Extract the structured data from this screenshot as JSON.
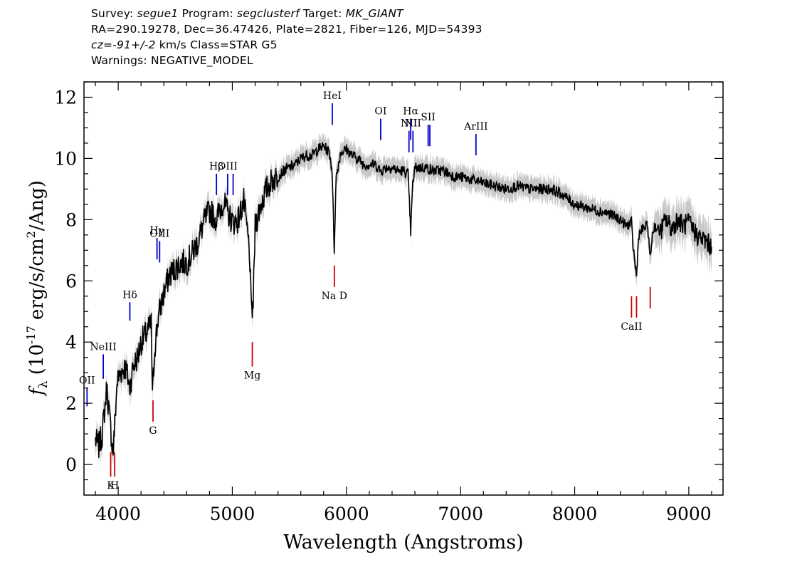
{
  "header": {
    "survey_label": "Survey:",
    "survey": "segue1",
    "program_label": "Program:",
    "program": "segclusterf",
    "target_label": "Target:",
    "target": "MK_GIANT",
    "coords": "RA=290.19278, Dec=36.47426, Plate=2821, Fiber=126, MJD=54393",
    "cz_label": "cz=",
    "cz": "-91+/-2",
    "cz_rest": " km/s Class=STAR G5",
    "warnings": "Warnings: NEGATIVE_MODEL"
  },
  "chart_data": {
    "type": "line",
    "title": "",
    "xlabel": "Wavelength (Angstroms)",
    "ylabel": "f_λ (10^-17 erg/s/cm^2/Ang)",
    "xlim": [
      3700,
      9300
    ],
    "ylim": [
      -1.0,
      12.5
    ],
    "xticks": [
      4000,
      5000,
      6000,
      7000,
      8000,
      9000
    ],
    "yticks": [
      0,
      2,
      4,
      6,
      8,
      10,
      12
    ],
    "series": [
      {
        "color": "#000000",
        "x": [
          3800,
          3830,
          3860,
          3900,
          3930,
          3955,
          3970,
          3990,
          4020,
          4060,
          4080,
          4102,
          4130,
          4170,
          4200,
          4250,
          4290,
          4300,
          4320,
          4350,
          4400,
          4450,
          4500,
          4550,
          4600,
          4650,
          4700,
          4750,
          4800,
          4861,
          4880,
          4920,
          4960,
          5007,
          5050,
          5100,
          5150,
          5167,
          5183,
          5200,
          5250,
          5300,
          5350,
          5400,
          5450,
          5500,
          5550,
          5600,
          5650,
          5700,
          5750,
          5800,
          5850,
          5875,
          5893,
          5910,
          5950,
          6000,
          6050,
          6100,
          6150,
          6200,
          6250,
          6300,
          6350,
          6400,
          6450,
          6500,
          6540,
          6563,
          6580,
          6600,
          6650,
          6700,
          6750,
          6800,
          6850,
          6900,
          6950,
          7000,
          7100,
          7200,
          7300,
          7400,
          7500,
          7600,
          7700,
          7800,
          7900,
          8000,
          8100,
          8200,
          8300,
          8400,
          8450,
          8498,
          8510,
          8542,
          8560,
          8600,
          8640,
          8662,
          8680,
          8700,
          8750,
          8800,
          8850,
          8900,
          8950,
          9000,
          9050,
          9100,
          9150,
          9200
        ],
        "y": [
          0.8,
          0.6,
          1.0,
          2.5,
          1.3,
          0.4,
          1.3,
          2.7,
          3.0,
          3.2,
          2.9,
          2.5,
          3.2,
          3.5,
          4.0,
          4.3,
          4.6,
          2.2,
          3.8,
          4.8,
          5.6,
          6.2,
          6.4,
          6.6,
          6.6,
          6.9,
          7.3,
          7.9,
          8.3,
          8.0,
          8.2,
          8.6,
          8.2,
          7.9,
          8.0,
          8.6,
          7.0,
          4.9,
          5.3,
          7.8,
          8.5,
          9.0,
          9.3,
          9.4,
          9.6,
          9.7,
          9.8,
          10.0,
          10.1,
          10.1,
          10.3,
          10.4,
          10.2,
          9.6,
          7.0,
          9.4,
          10.2,
          10.3,
          10.1,
          10.0,
          9.8,
          9.8,
          9.8,
          9.6,
          9.7,
          9.7,
          9.6,
          9.6,
          9.5,
          7.6,
          9.1,
          9.7,
          9.7,
          9.7,
          9.6,
          9.6,
          9.6,
          9.5,
          9.4,
          9.4,
          9.3,
          9.2,
          9.1,
          9.0,
          9.1,
          9.0,
          9.0,
          9.0,
          8.8,
          8.5,
          8.4,
          8.3,
          8.2,
          8.0,
          7.8,
          7.9,
          7.2,
          6.1,
          7.5,
          7.7,
          7.8,
          6.7,
          7.5,
          7.8,
          7.6,
          8.0,
          7.7,
          8.0,
          7.8,
          7.9,
          7.6,
          7.4,
          7.3,
          7.1
        ]
      }
    ],
    "line_labels": [
      {
        "name": "OII",
        "x": 3727,
        "color": "#0000cc",
        "side": "top",
        "y0": 1.9,
        "y1": 2.5
      },
      {
        "name": "NeIII",
        "x": 3869,
        "color": "#0000cc",
        "side": "top",
        "y0": 2.8,
        "y1": 3.6
      },
      {
        "name": "Hδ",
        "x": 4102,
        "color": "#0000cc",
        "side": "top",
        "y0": 4.7,
        "y1": 5.3
      },
      {
        "name": "Hγ",
        "x": 4340,
        "color": "#0000cc",
        "side": "top",
        "y0": 6.7,
        "y1": 7.4
      },
      {
        "name": "OIII",
        "x": 4363,
        "color": "#0000cc",
        "side": "top",
        "y0": 6.6,
        "y1": 7.3
      },
      {
        "name": "Hβ",
        "x": 4861,
        "color": "#0000cc",
        "side": "top",
        "y0": 8.8,
        "y1": 9.5
      },
      {
        "name": "OIII",
        "x": 4959,
        "color": "#0000cc",
        "side": "top",
        "y0": 8.8,
        "y1": 9.5
      },
      {
        "name": "",
        "x": 5007,
        "color": "#0000cc",
        "side": "top",
        "y0": 8.8,
        "y1": 9.5
      },
      {
        "name": "HeI",
        "x": 5876,
        "color": "#0000cc",
        "side": "top",
        "y0": 11.1,
        "y1": 11.8
      },
      {
        "name": "OI",
        "x": 6300,
        "color": "#0000cc",
        "side": "top",
        "y0": 10.6,
        "y1": 11.3
      },
      {
        "name": "NII",
        "x": 6548,
        "color": "#0000cc",
        "side": "top",
        "y0": 10.2,
        "y1": 10.9
      },
      {
        "name": "Hα",
        "x": 6563,
        "color": "#0000cc",
        "side": "top",
        "y0": 10.6,
        "y1": 11.3
      },
      {
        "name": "NII",
        "x": 6583,
        "color": "#0000cc",
        "side": "top",
        "y0": 10.2,
        "y1": 10.9
      },
      {
        "name": "SII",
        "x": 6716,
        "color": "#0000cc",
        "side": "top",
        "y0": 10.4,
        "y1": 11.1
      },
      {
        "name": "",
        "x": 6731,
        "color": "#0000cc",
        "side": "top",
        "y0": 10.4,
        "y1": 11.1
      },
      {
        "name": "ArIII",
        "x": 7135,
        "color": "#0000cc",
        "side": "top",
        "y0": 10.1,
        "y1": 10.8
      },
      {
        "name": "K",
        "x": 3934,
        "color": "#cc0000",
        "side": "bottom",
        "y0": -0.4,
        "y1": 0.4
      },
      {
        "name": "H",
        "x": 3969,
        "color": "#cc0000",
        "side": "bottom",
        "y0": -0.4,
        "y1": 0.4
      },
      {
        "name": "G",
        "x": 4305,
        "color": "#cc0000",
        "side": "bottom",
        "y0": 1.4,
        "y1": 2.1
      },
      {
        "name": "Mg",
        "x": 5175,
        "color": "#cc0000",
        "side": "bottom",
        "y0": 3.2,
        "y1": 4.0
      },
      {
        "name": "Na D",
        "x": 5894,
        "color": "#cc0000",
        "side": "bottom",
        "y0": 5.8,
        "y1": 6.5
      },
      {
        "name": "CaII",
        "x": 8498,
        "color": "#cc0000",
        "side": "bottom",
        "y0": 4.8,
        "y1": 5.5
      },
      {
        "name": "",
        "x": 8542,
        "color": "#cc0000",
        "side": "bottom",
        "y0": 4.8,
        "y1": 5.5
      },
      {
        "name": "",
        "x": 8662,
        "color": "#cc0000",
        "side": "bottom",
        "y0": 5.1,
        "y1": 5.8
      }
    ]
  }
}
